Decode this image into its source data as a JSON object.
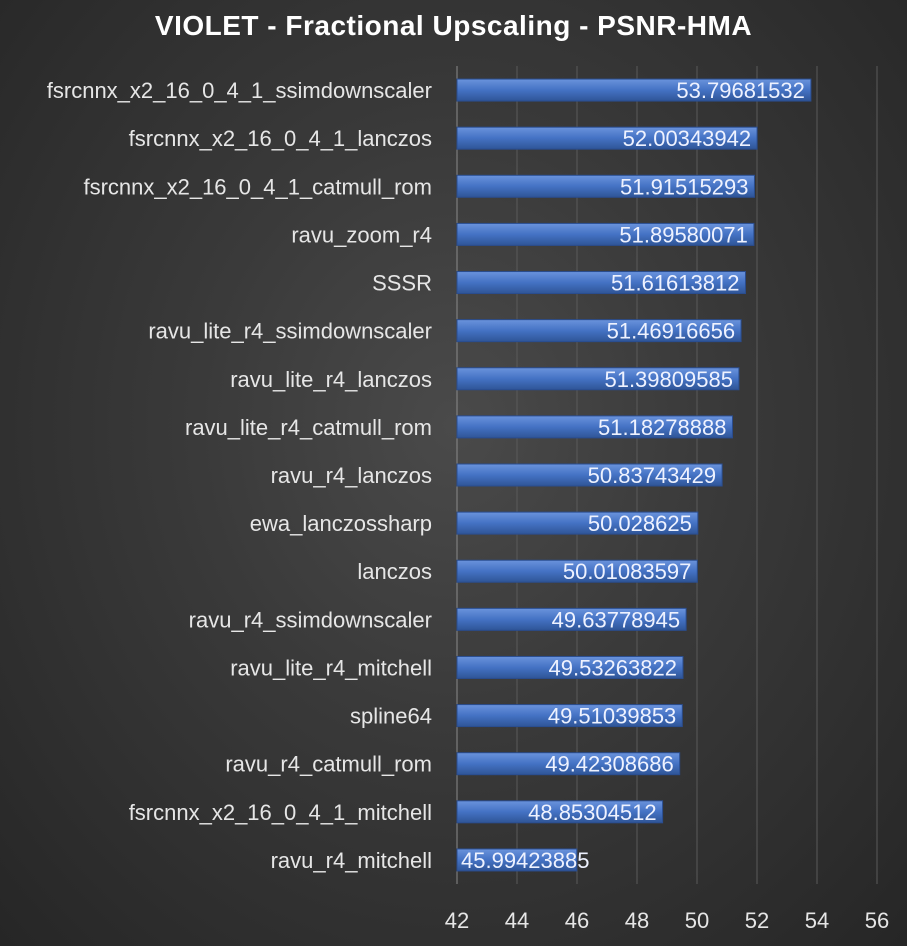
{
  "chart_data": {
    "type": "bar",
    "orientation": "horizontal",
    "title": "VIOLET - Fractional  Upscaling - PSNR-HMA",
    "xlabel": "",
    "ylabel": "",
    "xlim": [
      42,
      56
    ],
    "ticks": [
      "42",
      "44",
      "46",
      "48",
      "50",
      "52",
      "54",
      "56"
    ],
    "tick_values": [
      42,
      44,
      46,
      48,
      50,
      52,
      54,
      56
    ],
    "grid": true,
    "legend": "none",
    "bar_color": "#4472C4",
    "categories": [
      "fsrcnnx_x2_16_0_4_1_ssimdownscaler",
      "fsrcnnx_x2_16_0_4_1_lanczos",
      "fsrcnnx_x2_16_0_4_1_catmull_rom",
      "ravu_zoom_r4",
      "SSSR",
      "ravu_lite_r4_ssimdownscaler",
      "ravu_lite_r4_lanczos",
      "ravu_lite_r4_catmull_rom",
      "ravu_r4_lanczos",
      "ewa_lanczossharp",
      "lanczos",
      "ravu_r4_ssimdownscaler",
      "ravu_lite_r4_mitchell",
      "spline64",
      "ravu_r4_catmull_rom",
      "fsrcnnx_x2_16_0_4_1_mitchell",
      "ravu_r4_mitchell"
    ],
    "values": [
      53.79681532,
      52.00343942,
      51.91515293,
      51.89580071,
      51.61613812,
      51.46916656,
      51.39809585,
      51.18278888,
      50.83743429,
      50.028625,
      50.01083597,
      49.63778945,
      49.53263822,
      49.51039853,
      49.42308686,
      48.85304512,
      45.99423885
    ],
    "data_labels": [
      "53.79681532",
      "52.00343942",
      "51.91515293",
      "51.89580071",
      "51.61613812",
      "51.46916656",
      "51.39809585",
      "51.18278888",
      "50.83743429",
      "50.028625",
      "50.01083597",
      "49.63778945",
      "49.53263822",
      "49.51039853",
      "49.42308686",
      "48.85304512",
      "45.99423885"
    ]
  }
}
